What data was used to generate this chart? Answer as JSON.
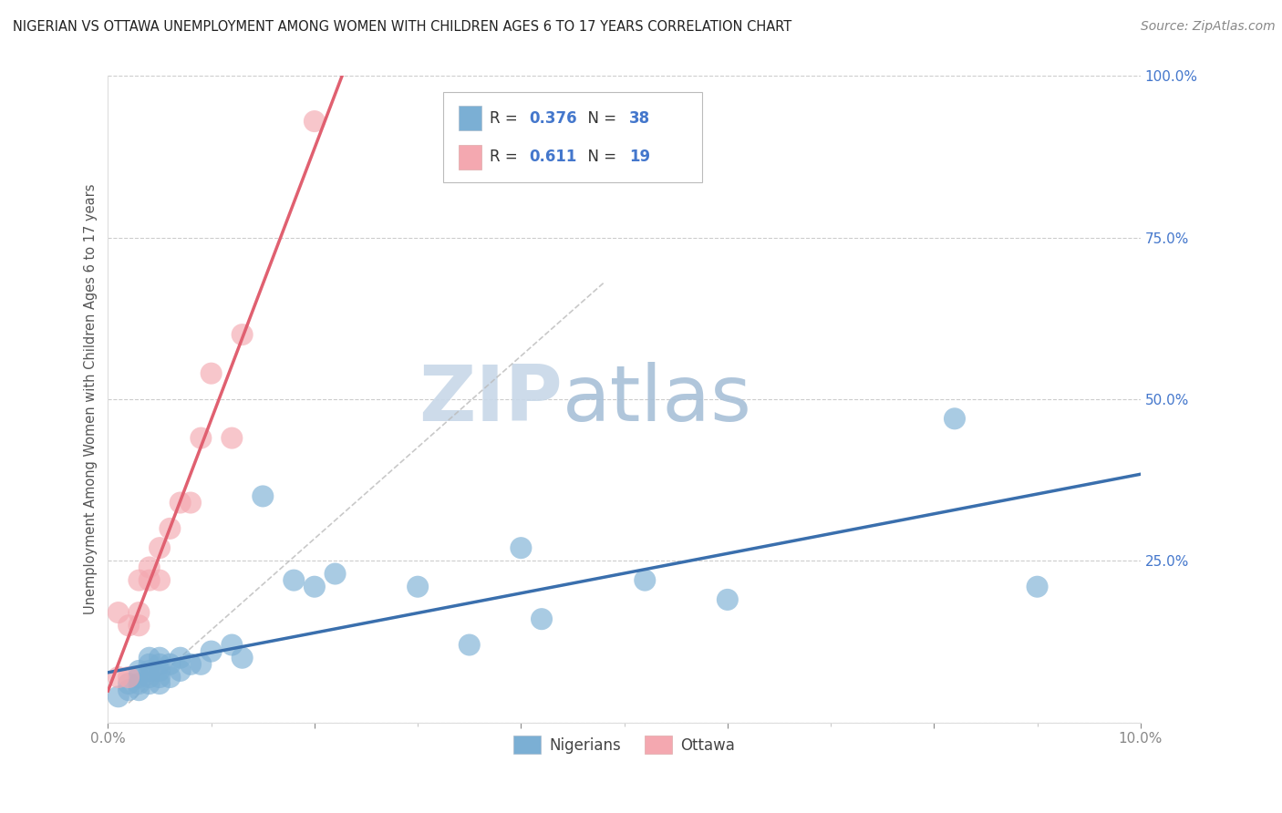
{
  "title": "NIGERIAN VS OTTAWA UNEMPLOYMENT AMONG WOMEN WITH CHILDREN AGES 6 TO 17 YEARS CORRELATION CHART",
  "source": "Source: ZipAtlas.com",
  "ylabel": "Unemployment Among Women with Children Ages 6 to 17 years",
  "xlim": [
    0.0,
    0.1
  ],
  "ylim": [
    0.0,
    1.0
  ],
  "nigerians_color": "#7BAFD4",
  "ottawa_color": "#F4A8B0",
  "nigerians_line_color": "#3A6FAD",
  "ottawa_line_color": "#E06070",
  "diag_line_color": "#BBBBBB",
  "nigerians_R": "0.376",
  "nigerians_N": "38",
  "ottawa_R": "0.611",
  "ottawa_N": "19",
  "watermark_zip": "ZIP",
  "watermark_atlas": "atlas",
  "background_color": "#FFFFFF",
  "grid_color": "#CCCCCC",
  "r_n_color": "#4477CC",
  "title_color": "#222222",
  "source_color": "#888888",
  "ylabel_color": "#555555",
  "ytick_color": "#4477CC",
  "nigerians_x": [
    0.001,
    0.002,
    0.002,
    0.003,
    0.003,
    0.003,
    0.003,
    0.004,
    0.004,
    0.004,
    0.004,
    0.004,
    0.005,
    0.005,
    0.005,
    0.005,
    0.005,
    0.006,
    0.006,
    0.007,
    0.007,
    0.008,
    0.009,
    0.01,
    0.012,
    0.013,
    0.015,
    0.018,
    0.02,
    0.022,
    0.03,
    0.035,
    0.04,
    0.042,
    0.052,
    0.06,
    0.082,
    0.09
  ],
  "nigerians_y": [
    0.04,
    0.05,
    0.06,
    0.05,
    0.06,
    0.07,
    0.08,
    0.06,
    0.07,
    0.08,
    0.09,
    0.1,
    0.06,
    0.07,
    0.08,
    0.09,
    0.1,
    0.07,
    0.09,
    0.08,
    0.1,
    0.09,
    0.09,
    0.11,
    0.12,
    0.1,
    0.35,
    0.22,
    0.21,
    0.23,
    0.21,
    0.12,
    0.27,
    0.16,
    0.22,
    0.19,
    0.47,
    0.21
  ],
  "ottawa_x": [
    0.001,
    0.001,
    0.002,
    0.002,
    0.003,
    0.003,
    0.003,
    0.004,
    0.004,
    0.005,
    0.005,
    0.006,
    0.007,
    0.008,
    0.009,
    0.01,
    0.012,
    0.013,
    0.02
  ],
  "ottawa_y": [
    0.07,
    0.17,
    0.07,
    0.15,
    0.15,
    0.17,
    0.22,
    0.22,
    0.24,
    0.22,
    0.27,
    0.3,
    0.34,
    0.34,
    0.44,
    0.54,
    0.44,
    0.6,
    0.93
  ]
}
